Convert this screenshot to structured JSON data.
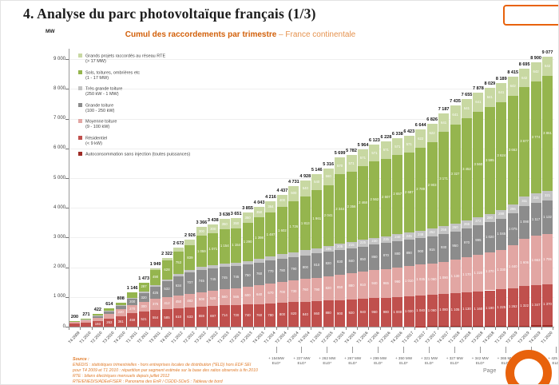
{
  "header": {
    "title": "4. Analyse du parc photovoltaïque français (1/3)"
  },
  "chart": {
    "subtitle_bold": "Cumul des raccordements par trimestre",
    "subtitle_rest": " – France continentale",
    "y_unit": "MW"
  },
  "chart_data": {
    "type": "bar",
    "stacked": true,
    "title": "Cumul des raccordements par trimestre – France continentale",
    "xlabel": "",
    "ylabel": "MW",
    "ylim": [
      0,
      9500
    ],
    "ytick_step": 1000,
    "grid": false,
    "legend_position": "upper-left",
    "categories": [
      "T4 2009",
      "T1 2010",
      "T2 2010",
      "T3 2010",
      "T4 2010",
      "T1 2011",
      "T2 2011",
      "T3 2011",
      "T4 2011",
      "T1 2012",
      "T2 2012",
      "T3 2012",
      "T4 2012",
      "T1 2013",
      "T2 2013",
      "T3 2013",
      "T4 2013",
      "T1 2014",
      "T2 2014",
      "T3 2014",
      "T4 2014",
      "T1 2015",
      "T2 2015",
      "T3 2015",
      "T4 2015",
      "T1 2016",
      "T2 2016",
      "T3 2016",
      "T4 2016",
      "T1 2017",
      "T2 2017",
      "T3 2017",
      "T4 2017",
      "T1 2018",
      "T2 2018",
      "T3 2018",
      "T4 2018",
      "T1 2019",
      "T2 2019",
      "T3 2019",
      "T4 2019",
      "T1 2020"
    ],
    "totals": [
      200,
      271,
      422,
      614,
      808,
      1146,
      1473,
      1949,
      2322,
      2672,
      2926,
      3366,
      3438,
      3638,
      3651,
      3855,
      4043,
      4216,
      4437,
      4731,
      4928,
      5146,
      5316,
      5699,
      5782,
      5964,
      6123,
      6228,
      6338,
      6423,
      6644,
      6826,
      7187,
      7435,
      7655,
      7878,
      8029,
      8189,
      8415,
      8695,
      8900,
      9077
    ],
    "series_note": "stack order bottom to top; segment values estimated from in-bar labels, sums match printed totals",
    "series": [
      {
        "name": "Autoconsommation sans injection (toutes puissances)",
        "range": "",
        "color": "#9e2b25",
        "values": [
          0,
          0,
          0,
          0,
          0,
          0,
          0,
          0,
          0,
          0,
          0,
          0,
          0,
          0,
          0,
          0,
          0,
          0,
          0,
          0,
          0,
          0,
          0,
          0,
          0,
          0,
          0,
          0,
          0,
          0,
          10,
          14,
          19,
          22,
          26,
          30,
          33,
          36,
          38,
          39,
          42,
          45
        ]
      },
      {
        "name": "Résidentiel",
        "range": "(< 9 kW)",
        "color": "#c0504d",
        "values": [
          105,
          145,
          193,
          263,
          361,
          459,
          521,
          554,
          585,
          610,
          633,
          659,
          697,
          714,
          720,
          740,
          760,
          780,
          800,
          820,
          840,
          860,
          880,
          900,
          920,
          940,
          960,
          980,
          1000,
          1020,
          1040,
          1060,
          1080,
          1105,
          1130,
          1160,
          1190,
          1225,
          1262,
          1322,
          1347,
          1370
        ]
      },
      {
        "name": "Moyenne toiture",
        "range": "(9 - 100 kW)",
        "color": "#e2a6a3",
        "values": [
          52,
          68,
          110,
          160,
          220,
          270,
          300,
          375,
          412,
          450,
          482,
          508,
          520,
          560,
          565,
          600,
          640,
          670,
          700,
          730,
          760,
          790,
          820,
          850,
          880,
          910,
          940,
          965,
          990,
          1010,
          1035,
          1060,
          1090,
          1130,
          1170,
          1220,
          1270,
          1330,
          1440,
          1606,
          1663,
          1706
        ]
      },
      {
        "name": "Grande toiture",
        "range": "(100 - 250 kW)",
        "color": "#8c8c8c",
        "values": [
          28,
          34,
          60,
          95,
          120,
          200,
          320,
          425,
          532,
          634,
          707,
          745,
          745,
          745,
          745,
          750,
          760,
          770,
          780,
          790,
          800,
          810,
          820,
          830,
          840,
          850,
          860,
          870,
          880,
          890,
          900,
          915,
          930,
          950,
          970,
          995,
          1020,
          1045,
          1075,
          1098,
          1117,
          1132
        ]
      },
      {
        "name": "Très grande toiture",
        "range": "(250 kW - 1 MW)",
        "color": "#c3c3c3",
        "values": [
          5,
          7,
          12,
          18,
          25,
          35,
          45,
          55,
          65,
          75,
          85,
          95,
          105,
          115,
          117,
          125,
          135,
          145,
          155,
          165,
          175,
          185,
          195,
          205,
          215,
          225,
          230,
          235,
          240,
          245,
          248,
          252,
          256,
          260,
          266,
          272,
          280,
          288,
          296,
          311,
          315,
          321
        ]
      },
      {
        "name": "Sols, toitures, ombrières etc",
        "range": "(1 - 17 MW)",
        "color": "#95b54e",
        "values": [
          10,
          17,
          47,
          78,
          82,
          182,
          287,
          490,
          628,
          753,
          839,
          1059,
          1071,
          1154,
          1154,
          1290,
          1398,
          1487,
          1602,
          1726,
          1813,
          1961,
          2041,
          2344,
          2356,
          2468,
          2562,
          2607,
          2657,
          2687,
          2789,
          2903,
          3171,
          3327,
          3452,
          3560,
          3595,
          3624,
          3662,
          3677,
          3774,
          3861
        ]
      },
      {
        "name": "Grands projets raccordés au réseau RTE",
        "range": "(> 17 MW)",
        "color": "#c8d8a2",
        "values": [
          0,
          0,
          0,
          0,
          0,
          0,
          0,
          50,
          100,
          150,
          180,
          300,
          300,
          350,
          350,
          350,
          350,
          364,
          400,
          500,
          540,
          540,
          560,
          570,
          571,
          571,
          571,
          571,
          571,
          571,
          622,
          622,
          641,
          641,
          641,
          641,
          641,
          641,
          642,
          642,
          642,
          642
        ]
      }
    ]
  },
  "footer": {
    "source_label": "Source :",
    "source_lines": [
      "ENEDIS : statistiques trimestrielles - hors entreprises locales de distribution (*ELD) hors EDF SEI",
      "pour T4 2009 et T1 2010 : répartition par segment estimée sur la base des ratios observés à fin 2010",
      "RTE : bilans électriques mensuels depuis juillet 2012",
      "RTE/ENEDIS/ADEeF/SER : Panorama des EnR / CGDD-SOeS : Tableau de bord"
    ],
    "eld_notes": [
      "+ 154MW",
      "+ 227 MW",
      "+ 262 MW",
      "+ 267 MW",
      "+ 299 MW",
      "+ 350 MW",
      "+ 321 MW",
      "+ 327 MW",
      "+ 342 MW",
      "+ 365 MW",
      "+ 376 MW",
      "+ 425 MW"
    ],
    "eld_suffix": "ELD*",
    "page_label": "Page"
  }
}
